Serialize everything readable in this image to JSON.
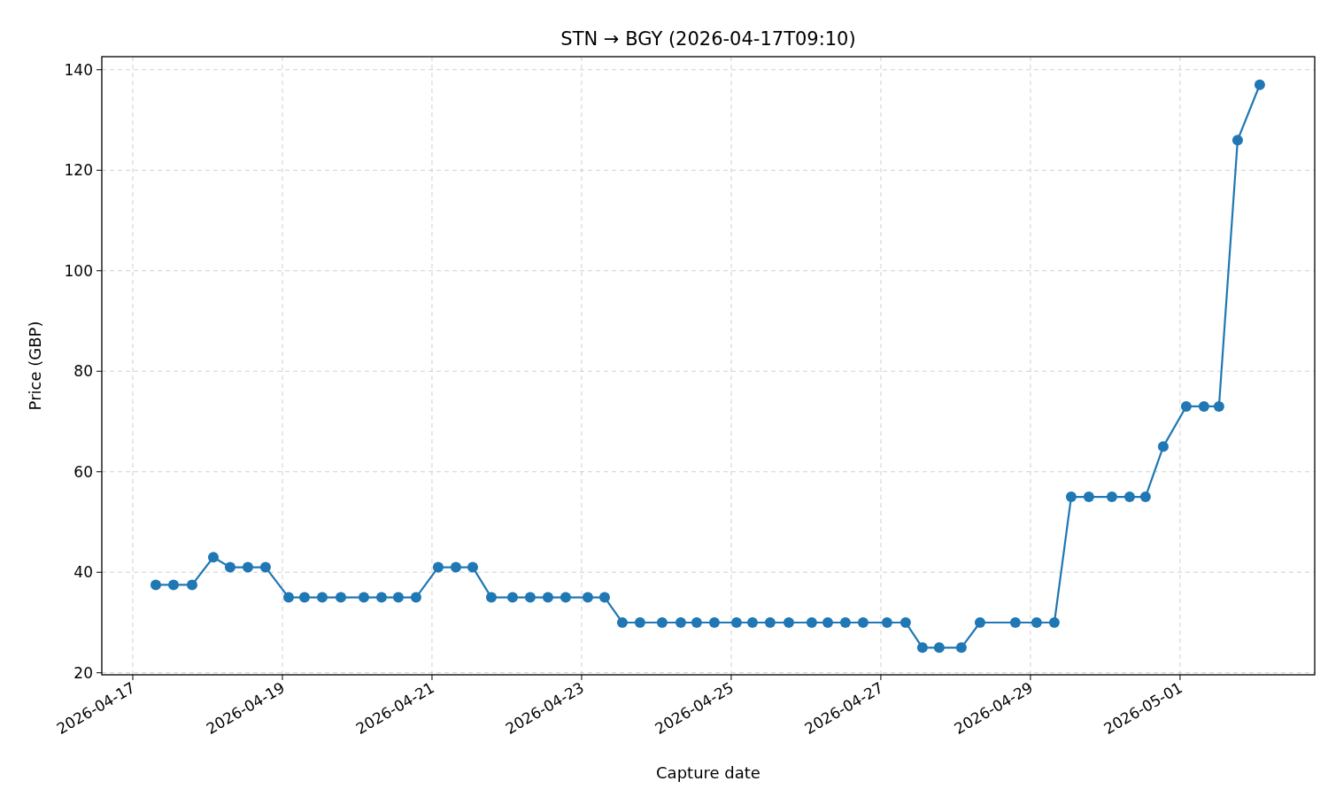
{
  "chart_data": {
    "type": "line",
    "title": "STN → BGY (2026-04-17T09:10)",
    "xlabel": "Capture date",
    "ylabel": "Price (GBP)",
    "x": [
      "2026-04-17T07:23",
      "2026-04-17T13:04",
      "2026-04-17T19:02",
      "2026-04-18T01:51",
      "2026-04-18T07:14",
      "2026-04-18T12:55",
      "2026-04-18T18:36",
      "2026-04-19T02:00",
      "2026-04-19T07:06",
      "2026-04-19T12:47",
      "2026-04-19T18:45",
      "2026-04-20T02:08",
      "2026-04-20T07:49",
      "2026-04-20T13:12",
      "2026-04-20T18:53",
      "2026-04-21T01:59",
      "2026-04-21T07:40",
      "2026-04-21T13:04",
      "2026-04-21T19:02",
      "2026-04-22T01:51",
      "2026-04-22T07:31",
      "2026-04-22T13:12",
      "2026-04-22T18:53",
      "2026-04-23T01:59",
      "2026-04-23T07:23",
      "2026-04-23T13:04",
      "2026-04-23T18:44",
      "2026-04-24T01:50",
      "2026-04-24T07:49",
      "2026-04-24T12:55",
      "2026-04-24T18:36",
      "2026-04-25T01:42",
      "2026-04-25T06:49",
      "2026-04-25T12:29",
      "2026-04-25T18:28",
      "2026-04-26T01:50",
      "2026-04-26T06:58",
      "2026-04-26T12:38",
      "2026-04-26T18:19",
      "2026-04-27T01:59",
      "2026-04-27T07:57",
      "2026-04-27T13:21",
      "2026-04-27T18:44",
      "2026-04-28T01:50",
      "2026-04-28T07:49",
      "2026-04-28T19:10",
      "2026-04-29T01:59",
      "2026-04-29T07:40",
      "2026-04-29T13:04",
      "2026-04-29T18:44",
      "2026-04-30T02:08",
      "2026-04-30T07:49",
      "2026-04-30T12:55",
      "2026-04-30T18:36",
      "2026-05-01T01:59",
      "2026-05-01T07:40",
      "2026-05-01T12:29",
      "2026-05-01T18:28",
      "2026-05-02T01:34"
    ],
    "series": [
      {
        "color": "#1f77b4",
        "values": [
          37.5,
          37.5,
          37.5,
          43,
          41,
          41,
          41,
          35,
          35,
          35,
          35,
          35,
          35,
          35,
          35,
          41,
          41,
          41,
          35,
          35,
          35,
          35,
          35,
          35,
          35,
          30,
          30,
          30,
          30,
          30,
          30,
          30,
          30,
          30,
          30,
          30,
          30,
          30,
          30,
          30,
          30,
          25,
          25,
          25,
          30,
          30,
          30,
          30,
          55,
          55,
          55,
          55,
          55,
          65,
          73,
          73,
          73,
          126,
          137
        ]
      }
    ],
    "xlim": [
      "2026-04-16T14:04",
      "2026-05-02T19:12"
    ],
    "xticks": [
      "2026-04-17",
      "2026-04-19",
      "2026-04-21",
      "2026-04-23",
      "2026-04-25",
      "2026-04-27",
      "2026-04-29",
      "2026-05-01"
    ],
    "ylim": [
      19.6,
      142.6
    ],
    "yticks": [
      20,
      40,
      60,
      80,
      100,
      120,
      140
    ],
    "grid": true,
    "marker": "circle",
    "line_style": "solid"
  }
}
